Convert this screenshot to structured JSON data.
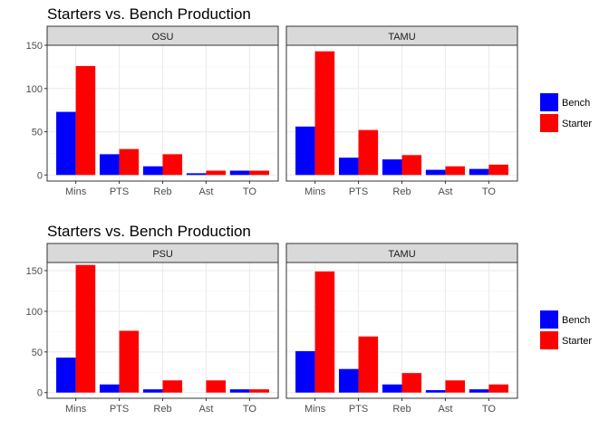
{
  "colors": {
    "Bench": "#0000FF",
    "Starter": "#FF0000",
    "strip_fill": "#D9D9D9",
    "panel_border": "#333333",
    "grid_major": "#EBEBEB",
    "grid_minor": "#F5F5F5"
  },
  "legend": {
    "position": "right",
    "items": [
      "Bench",
      "Starter"
    ]
  },
  "chart_data": [
    {
      "type": "bar",
      "title": "Starters vs. Bench Production",
      "ylim": [
        -7,
        150
      ],
      "yticks": [
        0,
        50,
        100,
        150
      ],
      "grid": true,
      "categories": [
        "Mins",
        "PTS",
        "Reb",
        "Ast",
        "TO"
      ],
      "facets": [
        {
          "label": "OSU",
          "series": [
            {
              "name": "Bench",
              "values": [
                73,
                24,
                10,
                2,
                5
              ]
            },
            {
              "name": "Starter",
              "values": [
                126,
                30,
                24,
                5,
                5
              ]
            }
          ]
        },
        {
          "label": "TAMU",
          "series": [
            {
              "name": "Bench",
              "values": [
                56,
                20,
                18,
                6,
                7
              ]
            },
            {
              "name": "Starter",
              "values": [
                143,
                52,
                23,
                10,
                12
              ]
            }
          ]
        }
      ]
    },
    {
      "type": "bar",
      "title": "Starters vs. Bench Production",
      "ylim": [
        -7,
        160
      ],
      "yticks": [
        0,
        50,
        100,
        150
      ],
      "grid": true,
      "categories": [
        "Mins",
        "PTS",
        "Reb",
        "Ast",
        "TO"
      ],
      "facets": [
        {
          "label": "PSU",
          "series": [
            {
              "name": "Bench",
              "values": [
                43,
                10,
                4,
                0,
                4
              ]
            },
            {
              "name": "Starter",
              "values": [
                157,
                76,
                15,
                15,
                4
              ]
            }
          ]
        },
        {
          "label": "TAMU",
          "series": [
            {
              "name": "Bench",
              "values": [
                51,
                29,
                10,
                3,
                4
              ]
            },
            {
              "name": "Starter",
              "values": [
                149,
                69,
                24,
                15,
                10
              ]
            }
          ]
        }
      ]
    }
  ]
}
